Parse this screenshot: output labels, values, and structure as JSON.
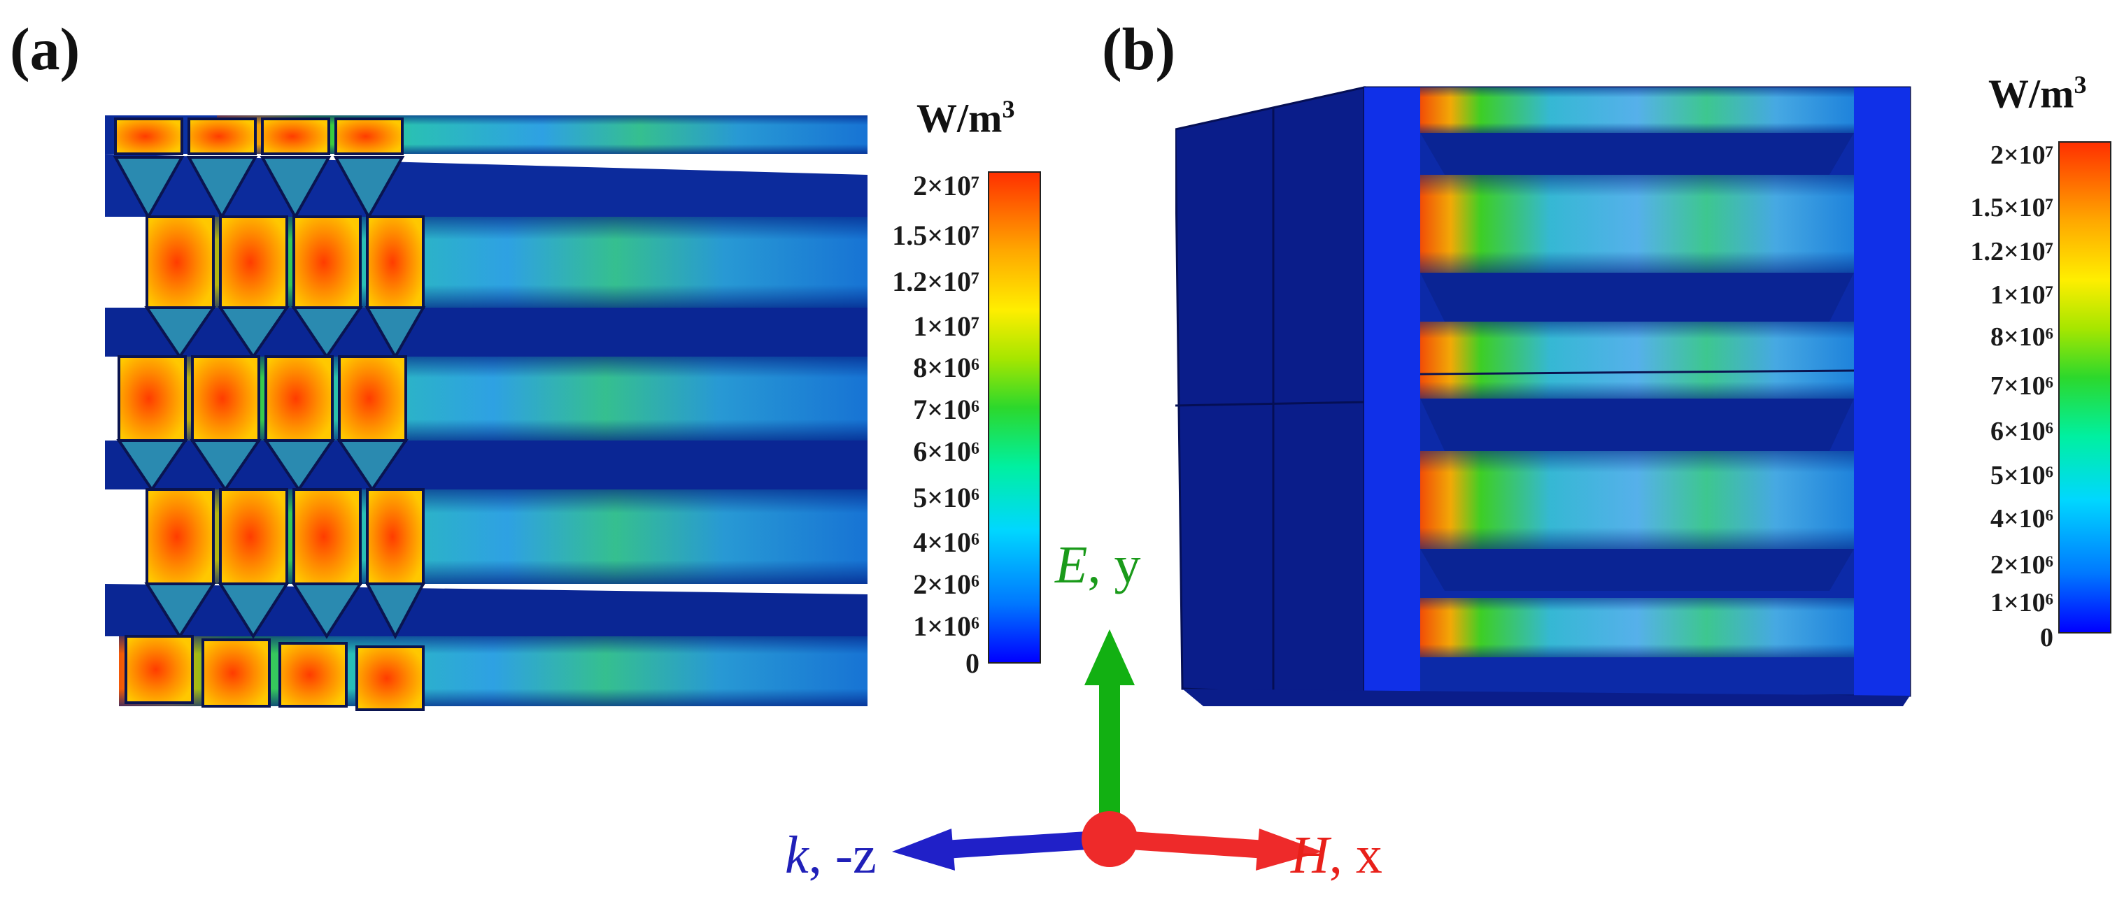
{
  "panel_a": {
    "label": "(a)",
    "unit_base": "W/m",
    "unit_exp": "3",
    "ticks": [
      {
        "text": "2×10⁷"
      },
      {
        "text": "1.5×10⁷"
      },
      {
        "text": "1.2×10⁷"
      },
      {
        "text": "1×10⁷"
      },
      {
        "text": "8×10⁶"
      },
      {
        "text": "7×10⁶"
      },
      {
        "text": "6×10⁶"
      },
      {
        "text": "5×10⁶"
      },
      {
        "text": "4×10⁶"
      },
      {
        "text": "2×10⁶"
      },
      {
        "text": "1×10⁶"
      },
      {
        "text": "0"
      }
    ]
  },
  "panel_b": {
    "label": "(b)",
    "unit_base": "W/m",
    "unit_exp": "3",
    "ticks": [
      {
        "text": "2×10⁷"
      },
      {
        "text": "1.5×10⁷"
      },
      {
        "text": "1.2×10⁷"
      },
      {
        "text": "1×10⁷"
      },
      {
        "text": "8×10⁶"
      },
      {
        "text": "7×10⁶"
      },
      {
        "text": "6×10⁶"
      },
      {
        "text": "5×10⁶"
      },
      {
        "text": "4×10⁶"
      },
      {
        "text": "2×10⁶"
      },
      {
        "text": "1×10⁶"
      },
      {
        "text": "0"
      }
    ]
  },
  "axes": {
    "e": {
      "symbol": "E",
      "rest": ", y",
      "color": "#1a9a1a"
    },
    "h": {
      "symbol": "H",
      "rest": ", x",
      "color": "#e8201a"
    },
    "k": {
      "symbol": "k",
      "rest": ", -z",
      "color": "#2020b8"
    }
  }
}
